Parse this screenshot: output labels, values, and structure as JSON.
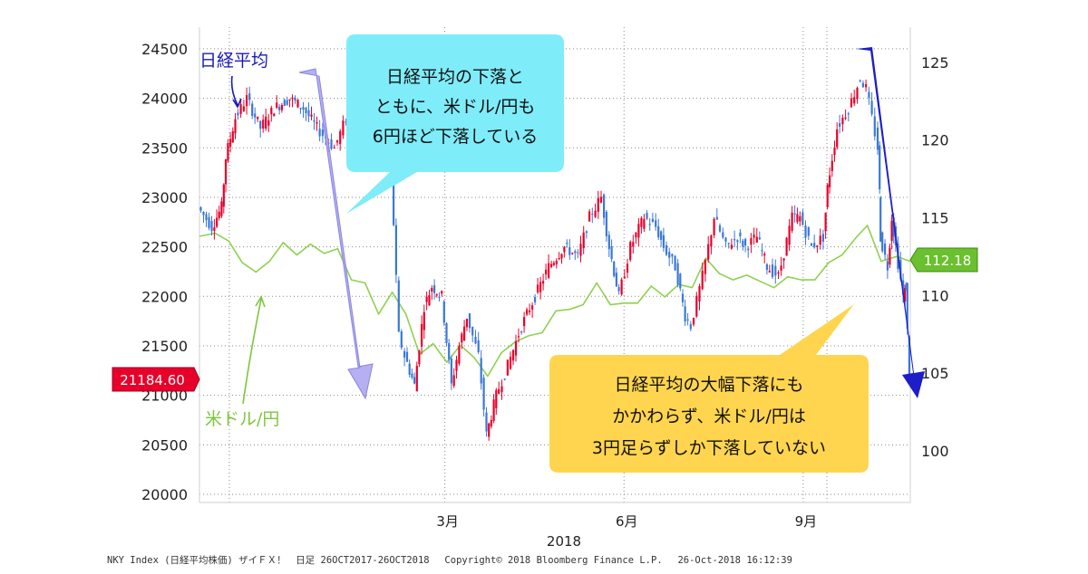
{
  "chart_data": {
    "type": "line",
    "title": "",
    "series": [
      {
        "name": "日経平均",
        "color": "#3a78d8",
        "up_color": "#e8002b",
        "axis": "left",
        "points": [
          [
            "2017-10-26",
            22900
          ],
          [
            "2017-11-02",
            22700
          ],
          [
            "2017-11-07",
            22900
          ],
          [
            "2017-11-09",
            23400
          ],
          [
            "2017-11-14",
            23800
          ],
          [
            "2017-11-20",
            24000
          ],
          [
            "2017-11-27",
            23700
          ],
          [
            "2017-12-04",
            23900
          ],
          [
            "2017-12-12",
            24000
          ],
          [
            "2017-12-19",
            23900
          ],
          [
            "2017-12-26",
            23700
          ],
          [
            "2018-01-04",
            23500
          ],
          [
            "2018-01-10",
            23800
          ],
          [
            "2018-01-15",
            24000
          ],
          [
            "2018-01-23",
            24100
          ],
          [
            "2018-01-29",
            23600
          ],
          [
            "2018-02-02",
            23300
          ],
          [
            "2018-02-06",
            21600
          ],
          [
            "2018-02-09",
            21400
          ],
          [
            "2018-02-14",
            21100
          ],
          [
            "2018-02-19",
            21900
          ],
          [
            "2018-02-23",
            22100
          ],
          [
            "2018-02-28",
            22000
          ],
          [
            "2018-03-05",
            21100
          ],
          [
            "2018-03-09",
            21500
          ],
          [
            "2018-03-13",
            21800
          ],
          [
            "2018-03-19",
            21400
          ],
          [
            "2018-03-23",
            20600
          ],
          [
            "2018-03-28",
            21000
          ],
          [
            "2018-04-03",
            21300
          ],
          [
            "2018-04-10",
            21700
          ],
          [
            "2018-04-17",
            22000
          ],
          [
            "2018-04-24",
            22300
          ],
          [
            "2018-05-02",
            22500
          ],
          [
            "2018-05-09",
            22400
          ],
          [
            "2018-05-15",
            22800
          ],
          [
            "2018-05-21",
            23000
          ],
          [
            "2018-05-25",
            22500
          ],
          [
            "2018-05-30",
            22000
          ],
          [
            "2018-06-05",
            22500
          ],
          [
            "2018-06-12",
            22800
          ],
          [
            "2018-06-18",
            22700
          ],
          [
            "2018-06-22",
            22500
          ],
          [
            "2018-06-28",
            22300
          ],
          [
            "2018-07-03",
            21800
          ],
          [
            "2018-07-06",
            21700
          ],
          [
            "2018-07-12",
            22200
          ],
          [
            "2018-07-18",
            22800
          ],
          [
            "2018-07-24",
            22500
          ],
          [
            "2018-07-30",
            22600
          ],
          [
            "2018-08-03",
            22500
          ],
          [
            "2018-08-09",
            22600
          ],
          [
            "2018-08-14",
            22300
          ],
          [
            "2018-08-20",
            22200
          ],
          [
            "2018-08-27",
            22800
          ],
          [
            "2018-08-31",
            22800
          ],
          [
            "2018-09-06",
            22500
          ],
          [
            "2018-09-12",
            22600
          ],
          [
            "2018-09-14",
            23100
          ],
          [
            "2018-09-19",
            23700
          ],
          [
            "2018-09-25",
            23900
          ],
          [
            "2018-10-01",
            24200
          ],
          [
            "2018-10-04",
            24100
          ],
          [
            "2018-10-10",
            23500
          ],
          [
            "2018-10-11",
            22600
          ],
          [
            "2018-10-15",
            22300
          ],
          [
            "2018-10-17",
            22800
          ],
          [
            "2018-10-19",
            22500
          ],
          [
            "2018-10-23",
            22000
          ],
          [
            "2018-10-24",
            22100
          ],
          [
            "2018-10-26",
            21184.6
          ]
        ]
      },
      {
        "name": "米ドル/円",
        "color": "#8fd14f",
        "axis": "right",
        "points": [
          [
            "2017-10-26",
            113.8
          ],
          [
            "2017-11-03",
            114.0
          ],
          [
            "2017-11-10",
            113.5
          ],
          [
            "2017-11-17",
            112.1
          ],
          [
            "2017-11-24",
            111.5
          ],
          [
            "2017-12-01",
            112.2
          ],
          [
            "2017-12-08",
            113.4
          ],
          [
            "2017-12-15",
            112.6
          ],
          [
            "2017-12-22",
            113.3
          ],
          [
            "2017-12-29",
            112.7
          ],
          [
            "2018-01-05",
            113.0
          ],
          [
            "2018-01-12",
            111.0
          ],
          [
            "2018-01-19",
            110.8
          ],
          [
            "2018-01-26",
            108.8
          ],
          [
            "2018-02-02",
            110.2
          ],
          [
            "2018-02-09",
            108.8
          ],
          [
            "2018-02-16",
            106.2
          ],
          [
            "2018-02-23",
            106.9
          ],
          [
            "2018-03-02",
            105.7
          ],
          [
            "2018-03-09",
            106.8
          ],
          [
            "2018-03-16",
            106.0
          ],
          [
            "2018-03-23",
            104.8
          ],
          [
            "2018-03-30",
            106.3
          ],
          [
            "2018-04-06",
            107.0
          ],
          [
            "2018-04-13",
            107.4
          ],
          [
            "2018-04-20",
            107.6
          ],
          [
            "2018-04-27",
            109.0
          ],
          [
            "2018-05-04",
            109.1
          ],
          [
            "2018-05-11",
            109.4
          ],
          [
            "2018-05-18",
            110.8
          ],
          [
            "2018-05-25",
            109.4
          ],
          [
            "2018-06-01",
            109.5
          ],
          [
            "2018-06-08",
            109.5
          ],
          [
            "2018-06-15",
            110.6
          ],
          [
            "2018-06-22",
            109.9
          ],
          [
            "2018-06-29",
            110.7
          ],
          [
            "2018-07-06",
            110.5
          ],
          [
            "2018-07-13",
            112.4
          ],
          [
            "2018-07-20",
            111.4
          ],
          [
            "2018-07-27",
            111.0
          ],
          [
            "2018-08-03",
            111.3
          ],
          [
            "2018-08-10",
            110.9
          ],
          [
            "2018-08-17",
            110.5
          ],
          [
            "2018-08-24",
            111.2
          ],
          [
            "2018-08-31",
            111.0
          ],
          [
            "2018-09-07",
            111.0
          ],
          [
            "2018-09-14",
            112.1
          ],
          [
            "2018-09-21",
            112.6
          ],
          [
            "2018-09-28",
            113.7
          ],
          [
            "2018-10-04",
            114.5
          ],
          [
            "2018-10-11",
            112.2
          ],
          [
            "2018-10-19",
            112.5
          ],
          [
            "2018-10-26",
            112.18
          ]
        ]
      }
    ],
    "x_range": [
      "2017-10-26",
      "2018-10-26"
    ],
    "x_ticks": [
      {
        "date": "2018-03-01",
        "label": "3月"
      },
      {
        "date": "2018-06-01",
        "label": "6月"
      },
      {
        "date": "2018-09-01",
        "label": "9月"
      }
    ],
    "year_label": "2018",
    "y_left": {
      "range": [
        20000,
        24600
      ],
      "ticks": [
        20000,
        20500,
        21000,
        21500,
        22000,
        22500,
        23000,
        23500,
        24000,
        24500
      ]
    },
    "y_right": {
      "range": [
        97.2,
        126.5
      ],
      "ticks": [
        100,
        105,
        110,
        115,
        120,
        125
      ]
    },
    "grid": "dotted-horizontal",
    "last_value_tags": {
      "left": "21184.60",
      "right": "112.18"
    },
    "series_labels": {
      "nikkei": "日経平均",
      "usdjpy": "米ドル/円"
    },
    "annotations": [
      {
        "name": "callout-top",
        "lines": [
          "日経平均の下落と",
          "ともに、米ドル/円も",
          "6円ほど下落している"
        ],
        "color": "#7fecf9"
      },
      {
        "name": "callout-bottom",
        "lines": [
          "日経平均の大幅下落にも",
          "かかわらず、米ドル/円は",
          "3円足らずしか下落していない"
        ],
        "color": "#ffd54f"
      }
    ],
    "arrows": [
      {
        "name": "decline-arrow-early",
        "color": "#a7a2ee"
      },
      {
        "name": "decline-arrow-late",
        "color": "#1e1ec8"
      }
    ],
    "footer": "NKY Index (日経平均株価) ザイＦＸ！　日足 26OCT2017-26OCT2018　 Copyright© 2018 Bloomberg Finance L.P.　 26-Oct-2018 16:12:39"
  }
}
